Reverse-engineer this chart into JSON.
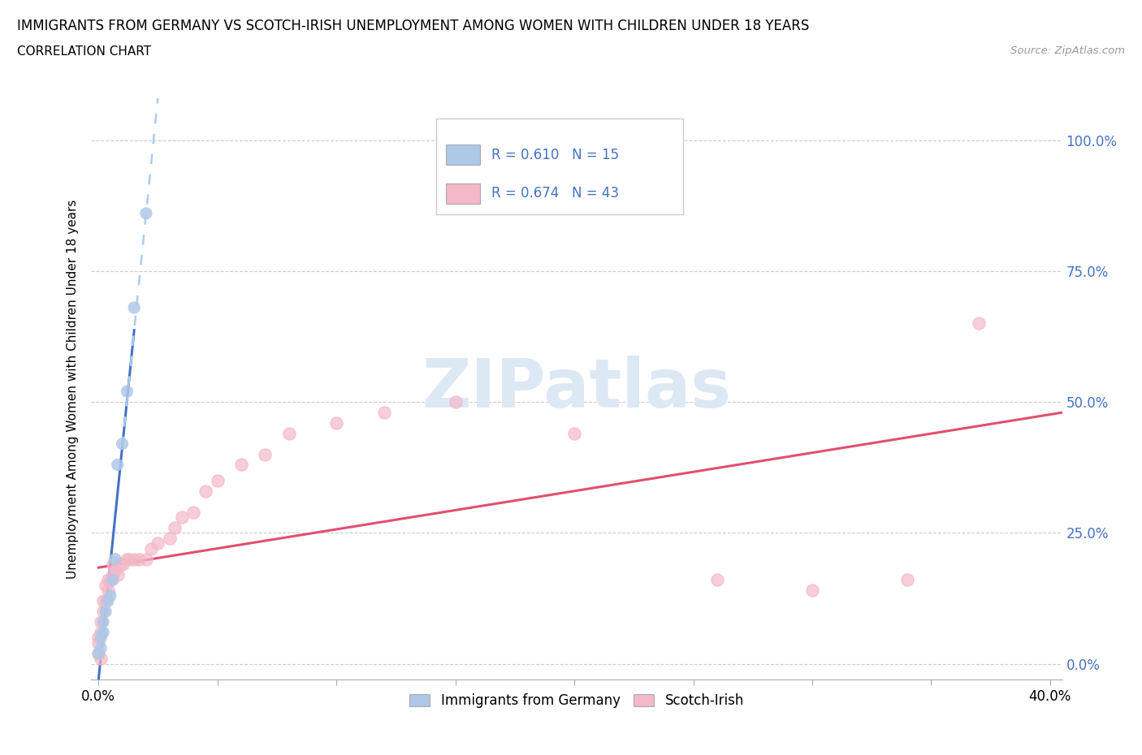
{
  "title": "IMMIGRANTS FROM GERMANY VS SCOTCH-IRISH UNEMPLOYMENT AMONG WOMEN WITH CHILDREN UNDER 18 YEARS",
  "subtitle": "CORRELATION CHART",
  "source": "Source: ZipAtlas.com",
  "ylabel": "Unemployment Among Women with Children Under 18 years",
  "germany_label": "Immigrants from Germany",
  "scotch_label": "Scotch-Irish",
  "germany_R": 0.61,
  "germany_N": 15,
  "scotch_R": 0.674,
  "scotch_N": 43,
  "germany_color": "#aec8e8",
  "germany_edge_color": "#aec8e8",
  "scotch_color": "#f4b8c8",
  "scotch_edge_color": "#f4b8c8",
  "germany_line_color": "#4472c4",
  "germany_dash_color": "#aaccee",
  "scotch_line_color": "#e05070",
  "legend_text_color": "#4472c4",
  "right_axis_color": "#4472c4",
  "watermark_color": "#dde8f5",
  "watermark": "ZIPatlas",
  "germany_x": [
    0.0,
    0.001,
    0.001,
    0.002,
    0.002,
    0.003,
    0.004,
    0.005,
    0.006,
    0.007,
    0.008,
    0.01,
    0.012,
    0.015,
    0.02
  ],
  "germany_y": [
    0.02,
    0.03,
    0.05,
    0.06,
    0.08,
    0.1,
    0.12,
    0.13,
    0.16,
    0.2,
    0.38,
    0.42,
    0.52,
    0.68,
    0.86
  ],
  "scotch_x": [
    0.0,
    0.0,
    0.0,
    0.001,
    0.001,
    0.001,
    0.002,
    0.002,
    0.003,
    0.003,
    0.004,
    0.004,
    0.005,
    0.006,
    0.006,
    0.007,
    0.008,
    0.009,
    0.01,
    0.012,
    0.013,
    0.015,
    0.017,
    0.02,
    0.022,
    0.025,
    0.03,
    0.032,
    0.035,
    0.04,
    0.045,
    0.05,
    0.06,
    0.07,
    0.08,
    0.1,
    0.12,
    0.15,
    0.2,
    0.26,
    0.3,
    0.34,
    0.37
  ],
  "scotch_y": [
    0.02,
    0.04,
    0.05,
    0.01,
    0.06,
    0.08,
    0.1,
    0.12,
    0.12,
    0.15,
    0.14,
    0.16,
    0.16,
    0.17,
    0.19,
    0.18,
    0.17,
    0.19,
    0.19,
    0.2,
    0.2,
    0.2,
    0.2,
    0.2,
    0.22,
    0.23,
    0.24,
    0.26,
    0.28,
    0.29,
    0.33,
    0.35,
    0.38,
    0.4,
    0.44,
    0.46,
    0.48,
    0.5,
    0.44,
    0.16,
    0.14,
    0.16,
    0.65
  ],
  "xlim": [
    -0.003,
    0.405
  ],
  "ylim": [
    -0.03,
    1.08
  ],
  "y_ticks": [
    0.0,
    0.25,
    0.5,
    0.75,
    1.0
  ],
  "x_ticks": [
    0.0,
    0.05,
    0.1,
    0.15,
    0.2,
    0.25,
    0.3,
    0.35,
    0.4
  ],
  "figsize": [
    14.06,
    9.3
  ],
  "dpi": 100
}
